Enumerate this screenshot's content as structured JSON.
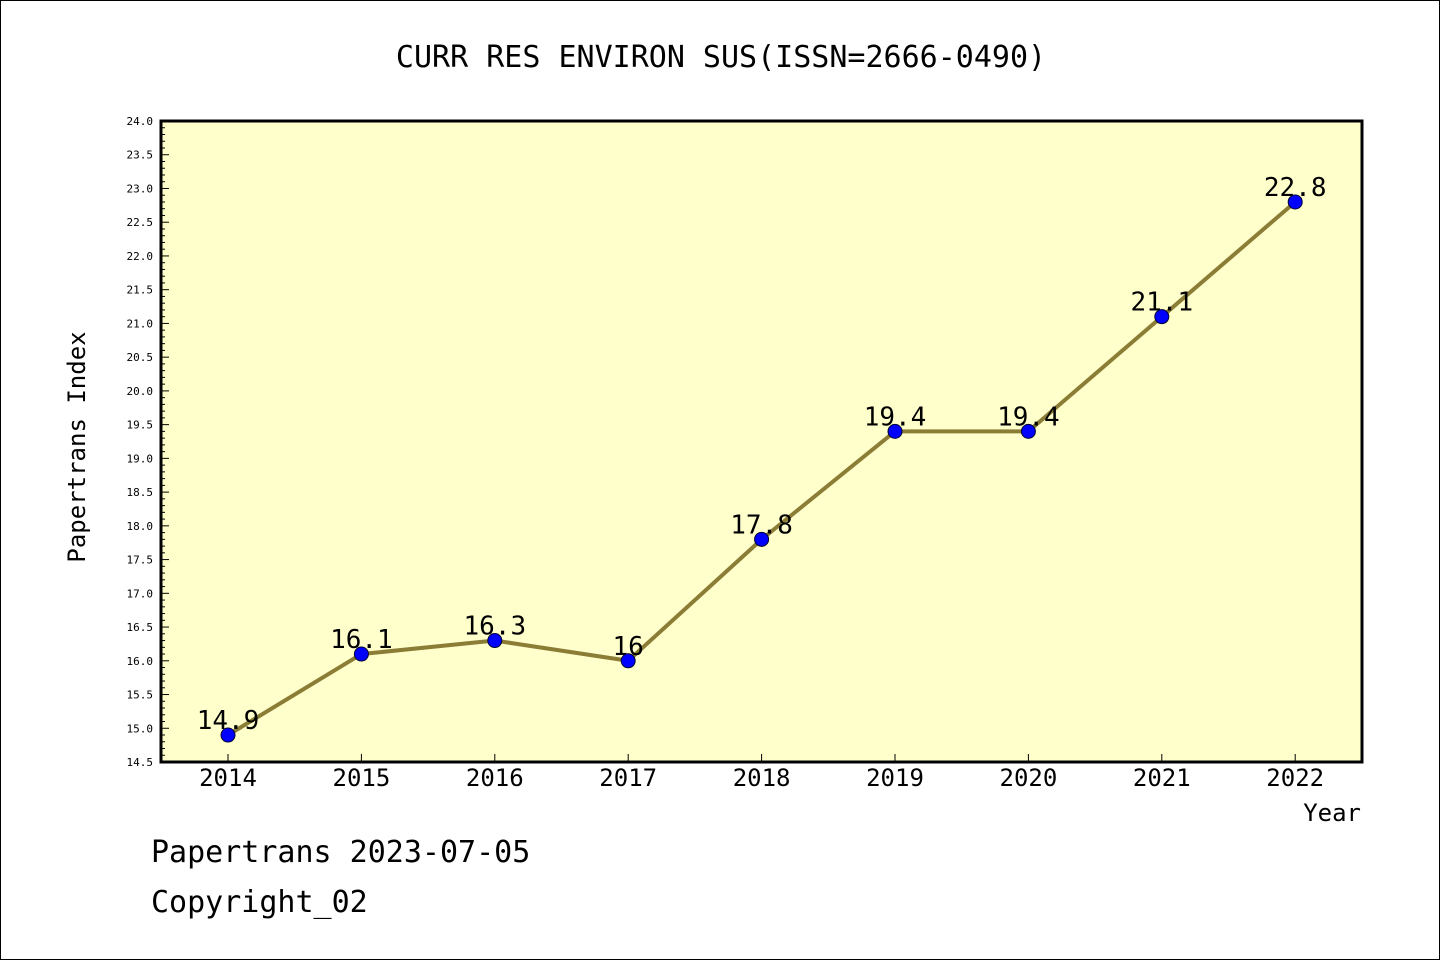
{
  "footer": {
    "line1": "Papertrans 2023-07-05",
    "line2": "Copyright_02"
  },
  "colors": {
    "plot_background": "#ffffcc",
    "line": "#8b7d35",
    "marker": "#0000ff"
  },
  "chart_data": {
    "type": "line",
    "title": "CURR RES ENVIRON SUS(ISSN=2666-0490)",
    "xlabel": "Year",
    "ylabel": "Papertrans Index",
    "categories": [
      "2014",
      "2015",
      "2016",
      "2017",
      "2018",
      "2019",
      "2020",
      "2021",
      "2022"
    ],
    "series": [
      {
        "values": [
          14.9,
          16.1,
          16.3,
          16.0,
          17.8,
          19.4,
          19.4,
          21.1,
          22.8
        ],
        "data_labels": [
          "14.9",
          "16.1",
          "16.3",
          "16",
          "17.8",
          "19.4",
          "19.4",
          "21.1",
          "22.8"
        ]
      }
    ],
    "ylim": [
      14.5,
      24.0
    ],
    "yticks": [
      "14.5",
      "15.0",
      "15.5",
      "16.0",
      "16.5",
      "17.0",
      "17.5",
      "18.0",
      "18.5",
      "19.0",
      "19.5",
      "20.0",
      "20.5",
      "21.0",
      "21.5",
      "22.0",
      "22.5",
      "23.0",
      "23.5",
      "24.0"
    ],
    "grid": false,
    "legend": "none"
  }
}
